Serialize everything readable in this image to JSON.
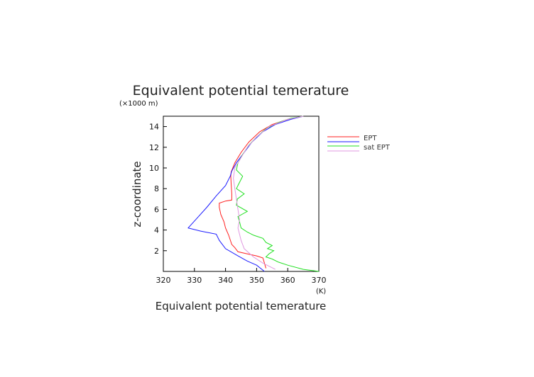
{
  "chart_data": {
    "type": "line",
    "title": "Equivalent potential temerature",
    "xlabel": "Equivalent potential temerature",
    "xunit": "(K)",
    "ylabel": "z-coordinate",
    "yunit": "(×1000 m)",
    "xlim": [
      320,
      370
    ],
    "ylim": [
      0,
      15
    ],
    "xticks": [
      320,
      330,
      340,
      350,
      360,
      370
    ],
    "yticks": [
      2,
      4,
      6,
      8,
      10,
      12,
      14
    ],
    "grid": false,
    "legend_position": "right",
    "series": [
      {
        "name": "EPT",
        "color": "#ff2020",
        "points": [
          [
            353,
            0.3
          ],
          [
            352.5,
            0.8
          ],
          [
            352,
            1.3
          ],
          [
            350,
            1.5
          ],
          [
            347,
            1.7
          ],
          [
            344,
            1.9
          ],
          [
            343,
            2.3
          ],
          [
            342,
            2.6
          ],
          [
            341,
            3.5
          ],
          [
            340,
            4.2
          ],
          [
            339.5,
            4.8
          ],
          [
            338.5,
            5.5
          ],
          [
            338,
            6.2
          ],
          [
            338,
            6.6
          ],
          [
            340,
            6.8
          ],
          [
            342,
            6.9
          ],
          [
            342,
            7.5
          ],
          [
            341.8,
            8.5
          ],
          [
            341.7,
            9.2
          ],
          [
            341.8,
            9.6
          ],
          [
            343,
            10.5
          ],
          [
            345,
            11.5
          ],
          [
            347.5,
            12.5
          ],
          [
            351,
            13.5
          ],
          [
            355,
            14.2
          ],
          [
            360,
            14.7
          ],
          [
            365,
            15
          ]
        ]
      },
      {
        "name": "EPT",
        "color": "#1a1aff",
        "points": [
          [
            352.5,
            0
          ],
          [
            350,
            0.6
          ],
          [
            347,
            1
          ],
          [
            344,
            1.5
          ],
          [
            340,
            2.2
          ],
          [
            338,
            3
          ],
          [
            337,
            3.6
          ],
          [
            332,
            3.9
          ],
          [
            328,
            4.2
          ],
          [
            331,
            5.2
          ],
          [
            334,
            6.2
          ],
          [
            337,
            7.3
          ],
          [
            340,
            8.3
          ],
          [
            341.5,
            9.2
          ],
          [
            342,
            9.7
          ],
          [
            343.5,
            10.5
          ],
          [
            346,
            11.5
          ],
          [
            348.5,
            12.5
          ],
          [
            352,
            13.5
          ],
          [
            356,
            14.2
          ],
          [
            361,
            14.7
          ],
          [
            365,
            15
          ]
        ]
      },
      {
        "name": "sat EPT",
        "color": "#20e020",
        "points": [
          [
            370,
            0
          ],
          [
            365,
            0.2
          ],
          [
            360,
            0.6
          ],
          [
            357,
            0.9
          ],
          [
            355,
            1.2
          ],
          [
            353,
            1.4
          ],
          [
            354,
            1.7
          ],
          [
            355.5,
            2
          ],
          [
            353.5,
            2.2
          ],
          [
            355,
            2.5
          ],
          [
            353,
            2.8
          ],
          [
            352,
            3.2
          ],
          [
            349,
            3.5
          ],
          [
            347,
            3.8
          ],
          [
            345,
            4.2
          ],
          [
            344.5,
            4.8
          ],
          [
            344,
            5.3
          ],
          [
            347,
            5.8
          ],
          [
            343.5,
            6.4
          ],
          [
            343.8,
            7
          ],
          [
            346,
            7.5
          ],
          [
            343.5,
            8
          ],
          [
            344.5,
            8.6
          ],
          [
            345.5,
            9.2
          ],
          [
            343.5,
            9.8
          ],
          [
            344,
            10.5
          ],
          [
            345.5,
            11.3
          ],
          [
            347.5,
            12.2
          ],
          [
            350,
            13
          ],
          [
            353,
            13.8
          ],
          [
            357,
            14.4
          ],
          [
            361,
            14.8
          ],
          [
            365,
            15
          ]
        ]
      },
      {
        "name": "sat EPT",
        "color": "#e098e0",
        "points": [
          [
            356,
            0.2
          ],
          [
            352,
            0.8
          ],
          [
            349,
            1.4
          ],
          [
            346,
            2.2
          ],
          [
            345,
            3
          ],
          [
            344.5,
            3.6
          ],
          [
            344,
            4.2
          ],
          [
            344.5,
            5
          ],
          [
            344,
            6
          ],
          [
            343.5,
            7
          ],
          [
            343,
            8
          ],
          [
            342.5,
            9
          ],
          [
            343,
            10
          ],
          [
            345,
            11
          ],
          [
            347,
            12
          ],
          [
            350,
            13
          ],
          [
            354,
            14
          ],
          [
            360,
            14.7
          ],
          [
            365,
            15
          ]
        ]
      }
    ]
  }
}
